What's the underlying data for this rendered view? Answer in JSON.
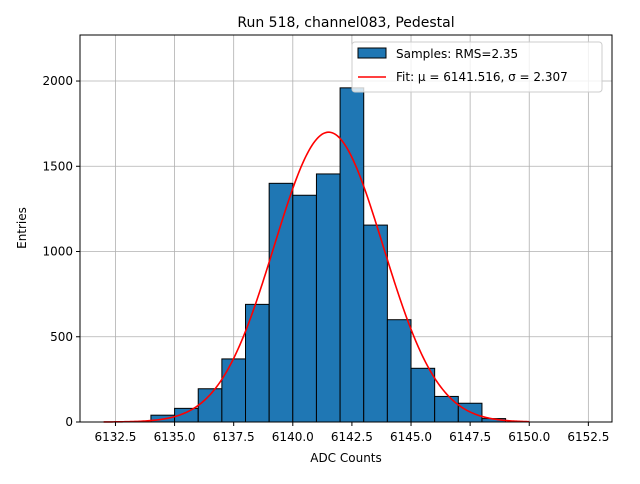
{
  "chart_data": {
    "type": "bar",
    "title": "Run 518, channel083, Pedestal",
    "xlabel": "ADC Counts",
    "ylabel": "Entries",
    "xlim": [
      6131,
      6153.5
    ],
    "ylim": [
      0,
      2270
    ],
    "grid": true,
    "legend_position": "top-right",
    "x_ticks": [
      6132.5,
      6135.0,
      6137.5,
      6140.0,
      6142.5,
      6145.0,
      6147.5,
      6150.0,
      6152.5
    ],
    "x_tick_labels": [
      "6132.5",
      "6135.0",
      "6137.5",
      "6140.0",
      "6142.5",
      "6145.0",
      "6147.5",
      "6150.0",
      "6152.5"
    ],
    "y_ticks": [
      0,
      500,
      1000,
      1500,
      2000
    ],
    "y_tick_labels": [
      "0",
      "500",
      "1000",
      "1500",
      "2000"
    ],
    "bin_edges": [
      6134,
      6135,
      6136,
      6137,
      6138,
      6139,
      6140,
      6141,
      6142,
      6143,
      6144,
      6145,
      6146,
      6147,
      6148,
      6149
    ],
    "values": [
      40,
      80,
      195,
      370,
      690,
      1400,
      1330,
      1455,
      1960,
      1155,
      600,
      315,
      150,
      110,
      20
    ],
    "fit": {
      "mu": 6141.516,
      "sigma": 2.307,
      "amplitude": 1700,
      "x_range": [
        6132,
        6150
      ]
    },
    "series": [
      {
        "name": "Samples: RMS=2.35",
        "kind": "histogram",
        "color": "#1f77b4"
      },
      {
        "name": "Fit: μ = 6141.516, σ = 2.307",
        "kind": "line",
        "color": "#ff0000"
      }
    ]
  }
}
